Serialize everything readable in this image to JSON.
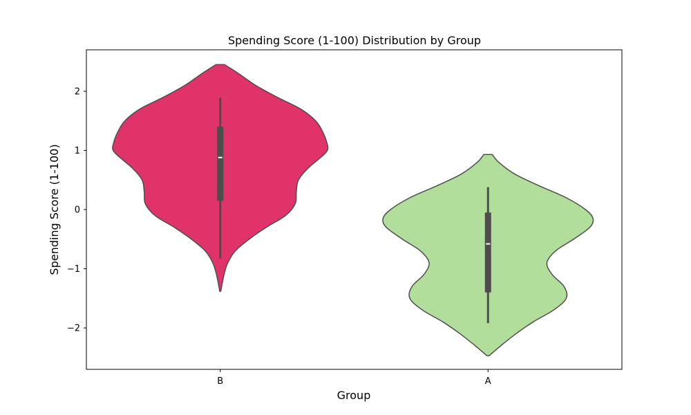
{
  "chart_data": {
    "type": "violin",
    "title": "Spending Score (1-100) Distribution by Group",
    "xlabel": "Group",
    "ylabel": "Spending Score (1-100)",
    "categories": [
      "B",
      "A"
    ],
    "ylim": [
      -2.7,
      2.7
    ],
    "yticks": [
      -2,
      -1,
      0,
      1,
      2
    ],
    "ytick_labels": [
      "−2",
      "−1",
      "0",
      "1",
      "2"
    ],
    "grid": false,
    "legend": "none",
    "series": [
      {
        "category": "B",
        "color": "#E0336A",
        "y_range": [
          -1.38,
          2.45
        ],
        "density_profile": [
          [
            2.45,
            0.04
          ],
          [
            2.3,
            0.17
          ],
          [
            2.1,
            0.33
          ],
          [
            1.9,
            0.53
          ],
          [
            1.7,
            0.75
          ],
          [
            1.5,
            0.89
          ],
          [
            1.3,
            0.96
          ],
          [
            1.1,
            1.0
          ],
          [
            1.0,
            1.0
          ],
          [
            0.9,
            0.95
          ],
          [
            0.7,
            0.82
          ],
          [
            0.5,
            0.73
          ],
          [
            0.3,
            0.71
          ],
          [
            0.1,
            0.7
          ],
          [
            -0.1,
            0.61
          ],
          [
            -0.3,
            0.43
          ],
          [
            -0.5,
            0.27
          ],
          [
            -0.7,
            0.14
          ],
          [
            -0.9,
            0.07
          ],
          [
            -1.1,
            0.035
          ],
          [
            -1.38,
            0.005
          ]
        ],
        "whisker": [
          -0.83,
          1.89
        ],
        "q1": 0.15,
        "median": 0.88,
        "q3": 1.4
      },
      {
        "category": "A",
        "color": "#B2DE9B",
        "y_range": [
          -2.47,
          0.93
        ],
        "density_profile": [
          [
            0.93,
            0.04
          ],
          [
            0.8,
            0.1
          ],
          [
            0.6,
            0.25
          ],
          [
            0.4,
            0.48
          ],
          [
            0.2,
            0.73
          ],
          [
            0.0,
            0.91
          ],
          [
            -0.15,
            0.98
          ],
          [
            -0.3,
            0.95
          ],
          [
            -0.5,
            0.8
          ],
          [
            -0.7,
            0.63
          ],
          [
            -0.9,
            0.55
          ],
          [
            -1.1,
            0.6
          ],
          [
            -1.3,
            0.71
          ],
          [
            -1.5,
            0.73
          ],
          [
            -1.7,
            0.61
          ],
          [
            -1.9,
            0.42
          ],
          [
            -2.1,
            0.26
          ],
          [
            -2.3,
            0.12
          ],
          [
            -2.47,
            0.01
          ]
        ],
        "whisker": [
          -1.92,
          0.38
        ],
        "q1": -1.4,
        "median": -0.58,
        "q3": -0.05
      }
    ]
  }
}
